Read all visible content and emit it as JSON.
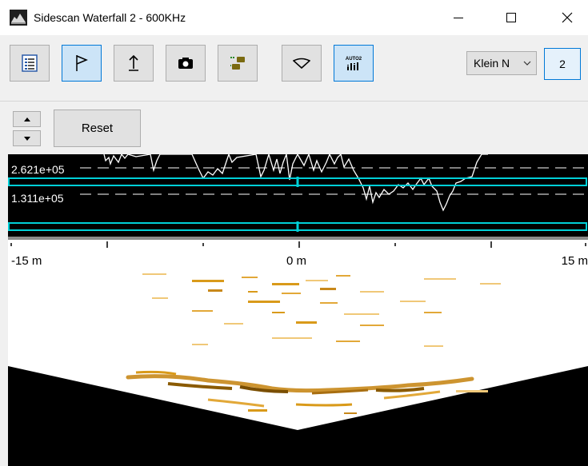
{
  "window": {
    "title": "Sidescan Waterfall 2 - 600KHz",
    "app_icon": "sonar-app-icon",
    "controls": {
      "minimize": "minimize-icon",
      "maximize": "maximize-icon",
      "close": "close-icon"
    }
  },
  "toolbar": {
    "buttons": [
      {
        "icon": "properties-list-icon",
        "active": false
      },
      {
        "icon": "flag-icon",
        "active": true
      },
      {
        "icon": "upload-arrow-icon",
        "active": false
      },
      {
        "icon": "camera-icon",
        "active": false
      },
      {
        "icon": "export-clips-icon",
        "active": false
      },
      {
        "icon": "sonar-beam-icon",
        "active": false
      },
      {
        "icon": "auto-gain-icon",
        "active": true,
        "label": "AUTO2"
      }
    ],
    "device_select": {
      "value": "Klein N",
      "icon": "chevron-down-icon"
    },
    "channel_button_label": "2"
  },
  "controls_row": {
    "up_icon": "spin-up-icon",
    "down_icon": "spin-down-icon",
    "reset_label": "Reset"
  },
  "signal": {
    "upper_label": "2.621e+05",
    "lower_label": "1.311e+05",
    "colors": {
      "background": "#000000",
      "trace": "#ffffff",
      "band": "#00d0d8"
    }
  },
  "ruler": {
    "left_label": "-15 m",
    "center_label": "0 m",
    "right_label": "15 m"
  },
  "waterfall": {
    "colors": {
      "water_column": "#000000",
      "echo_strong": "#8a5a00",
      "echo_mid": "#d99a1a",
      "echo_weak": "#f0c878"
    }
  }
}
